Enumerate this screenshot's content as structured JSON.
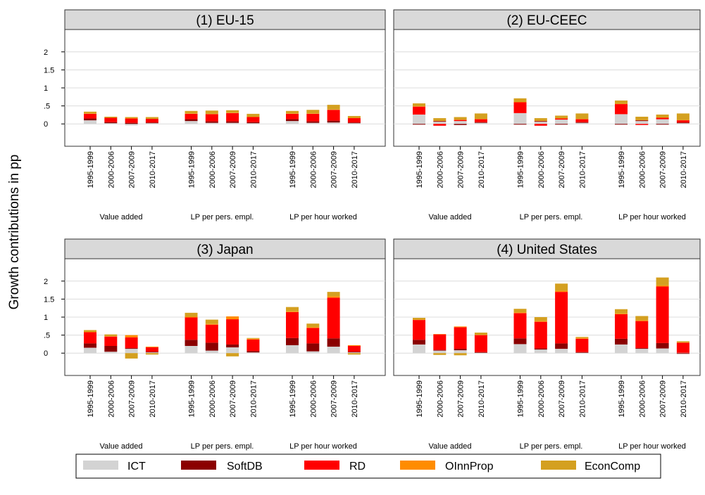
{
  "axis_label": "Growth contributions in pp",
  "chart_data": [
    {
      "type": "bar",
      "stacked": true,
      "title": "(1) EU-15",
      "shared_y": false,
      "categories": [
        "1995-1999",
        "2000-2006",
        "2007-2009",
        "2010-2017",
        "1995-1999",
        "2000-2006",
        "2007-2009",
        "2010-2017",
        "1995-1999",
        "2000-2006",
        "2007-2009",
        "2010-2017"
      ],
      "groups": [
        "Value added",
        "LP per pers. empl.",
        "LP per hour worked"
      ],
      "ylim": [
        -0.62,
        2.62
      ],
      "yticks": [
        0,
        {
          "value": 0.5,
          "label": ".5"
        },
        1,
        1.5,
        2
      ],
      "grid": true,
      "series": [
        {
          "name": "ICT",
          "color": "#d3d3d3",
          "values": [
            0.1,
            0.02,
            -0.04,
            0.02,
            0.08,
            0.03,
            0.03,
            0.02,
            0.08,
            0.03,
            0.04,
            0.02
          ]
        },
        {
          "name": "SoftDB",
          "color": "#8b0000",
          "values": [
            0.05,
            0.03,
            0.03,
            0.02,
            0.05,
            0.04,
            0.04,
            0.03,
            0.05,
            0.04,
            0.05,
            0.02
          ]
        },
        {
          "name": "RD",
          "color": "#ff0000",
          "values": [
            0.13,
            0.12,
            0.12,
            0.1,
            0.15,
            0.2,
            0.23,
            0.14,
            0.15,
            0.21,
            0.3,
            0.12
          ]
        },
        {
          "name": "OInnProp",
          "color": "#ff8c00",
          "values": [
            0.01,
            0.0,
            0.01,
            0.0,
            0.01,
            0.01,
            0.01,
            0.01,
            0.01,
            0.01,
            0.01,
            0.01
          ]
        },
        {
          "name": "EconComp",
          "color": "#d4a020",
          "values": [
            0.05,
            0.03,
            0.03,
            0.05,
            0.07,
            0.09,
            0.07,
            0.08,
            0.07,
            0.1,
            0.13,
            0.05
          ]
        }
      ]
    },
    {
      "type": "bar",
      "stacked": true,
      "title": "(2) EU-CEEC",
      "shared_y": true,
      "categories": [
        "1995-1999",
        "2000-2006",
        "2007-2009",
        "2010-2017",
        "1995-1999",
        "2000-2006",
        "2007-2009",
        "2010-2017",
        "1995-1999",
        "2000-2006",
        "2007-2009",
        "2010-2017"
      ],
      "groups": [
        "Value added",
        "LP per pers. empl.",
        "LP per hour worked"
      ],
      "ylim": [
        -0.62,
        2.62
      ],
      "yticks": [
        0,
        0.5,
        1,
        1.5,
        2
      ],
      "grid": true,
      "series": [
        {
          "name": "ICT",
          "color": "#d3d3d3",
          "values": [
            0.26,
            0.06,
            0.08,
            0.03,
            0.3,
            0.06,
            0.12,
            0.03,
            0.27,
            0.08,
            0.13,
            0.02
          ]
        },
        {
          "name": "SoftDB",
          "color": "#8b0000",
          "values": [
            -0.02,
            0.02,
            -0.03,
            0.02,
            -0.02,
            0.02,
            -0.02,
            0.02,
            -0.02,
            0.02,
            -0.02,
            0.02
          ]
        },
        {
          "name": "RD",
          "color": "#ff0000",
          "values": [
            0.22,
            -0.05,
            0.03,
            0.08,
            0.3,
            -0.05,
            0.03,
            0.08,
            0.28,
            -0.03,
            0.04,
            0.06
          ]
        },
        {
          "name": "OInnProp",
          "color": "#ff8c00",
          "values": [
            0.01,
            0.01,
            0.01,
            0.01,
            0.01,
            0.01,
            0.01,
            0.01,
            0.01,
            0.01,
            0.01,
            0.01
          ]
        },
        {
          "name": "EconComp",
          "color": "#d4a020",
          "values": [
            0.08,
            0.07,
            0.07,
            0.15,
            0.1,
            0.07,
            0.07,
            0.15,
            0.09,
            0.09,
            0.08,
            0.18
          ]
        }
      ]
    },
    {
      "type": "bar",
      "stacked": true,
      "title": "(3) Japan",
      "shared_y": false,
      "categories": [
        "1995-1999",
        "2000-2006",
        "2007-2009",
        "2010-2017",
        "1995-1999",
        "2000-2006",
        "2007-2009",
        "2010-2017",
        "1995-1999",
        "2000-2006",
        "2007-2009",
        "2010-2017"
      ],
      "groups": [
        "Value added",
        "LP per pers. empl.",
        "LP per hour worked"
      ],
      "ylim": [
        -0.62,
        2.62
      ],
      "yticks": [
        0,
        {
          "value": 0.5,
          "label": ".5"
        },
        1,
        1.5,
        2
      ],
      "grid": true,
      "series": [
        {
          "name": "ICT",
          "color": "#d3d3d3",
          "values": [
            0.15,
            0.04,
            0.12,
            0.02,
            0.2,
            0.07,
            0.16,
            0.02,
            0.22,
            0.05,
            0.18,
            0.02
          ]
        },
        {
          "name": "SoftDB",
          "color": "#8b0000",
          "values": [
            0.12,
            0.16,
            0.02,
            0.02,
            0.17,
            0.22,
            0.08,
            0.04,
            0.2,
            0.22,
            0.23,
            0.02
          ]
        },
        {
          "name": "RD",
          "color": "#ff0000",
          "values": [
            0.31,
            0.26,
            0.3,
            0.12,
            0.62,
            0.5,
            0.7,
            0.32,
            0.72,
            0.43,
            1.13,
            0.16
          ]
        },
        {
          "name": "OInnProp",
          "color": "#ff8c00",
          "values": [
            0.01,
            0.01,
            0.06,
            0.02,
            0.02,
            0.02,
            0.08,
            0.02,
            0.02,
            0.02,
            0.04,
            0.02
          ]
        },
        {
          "name": "EconComp",
          "color": "#d4a020",
          "values": [
            0.05,
            0.05,
            -0.15,
            -0.04,
            0.11,
            0.12,
            -0.09,
            0.02,
            0.12,
            0.1,
            0.12,
            -0.04
          ]
        }
      ]
    },
    {
      "type": "bar",
      "stacked": true,
      "title": "(4) United States",
      "shared_y": true,
      "categories": [
        "1995-1999",
        "2000-2006",
        "2007-2009",
        "2010-2017",
        "1995-1999",
        "2000-2006",
        "2007-2009",
        "2010-2017",
        "1995-1999",
        "2000-2006",
        "2007-2009",
        "2010-2017"
      ],
      "groups": [
        "Value added",
        "LP per pers. empl.",
        "LP per hour worked"
      ],
      "ylim": [
        -0.62,
        2.62
      ],
      "yticks": [
        0,
        0.5,
        1,
        1.5,
        2
      ],
      "grid": true,
      "series": [
        {
          "name": "ICT",
          "color": "#d3d3d3",
          "values": [
            0.24,
            0.07,
            0.08,
            0.01,
            0.25,
            0.1,
            0.12,
            0.01,
            0.24,
            0.12,
            0.13,
            0.01
          ]
        },
        {
          "name": "SoftDB",
          "color": "#8b0000",
          "values": [
            0.13,
            0.02,
            0.04,
            0.02,
            0.16,
            0.03,
            0.15,
            0.02,
            0.16,
            0.02,
            0.15,
            -0.02
          ]
        },
        {
          "name": "RD",
          "color": "#ff0000",
          "values": [
            0.55,
            0.43,
            0.6,
            0.47,
            0.7,
            0.74,
            1.43,
            0.37,
            0.68,
            0.75,
            1.57,
            0.28
          ]
        },
        {
          "name": "OInnProp",
          "color": "#ff8c00",
          "values": [
            0.01,
            0.01,
            0.02,
            0.01,
            0.02,
            0.02,
            0.03,
            0.02,
            0.02,
            0.02,
            0.03,
            0.01
          ]
        },
        {
          "name": "EconComp",
          "color": "#d4a020",
          "values": [
            0.05,
            -0.05,
            -0.06,
            0.06,
            0.1,
            0.11,
            0.2,
            0.03,
            0.12,
            0.12,
            0.22,
            0.03
          ]
        }
      ]
    }
  ]
}
